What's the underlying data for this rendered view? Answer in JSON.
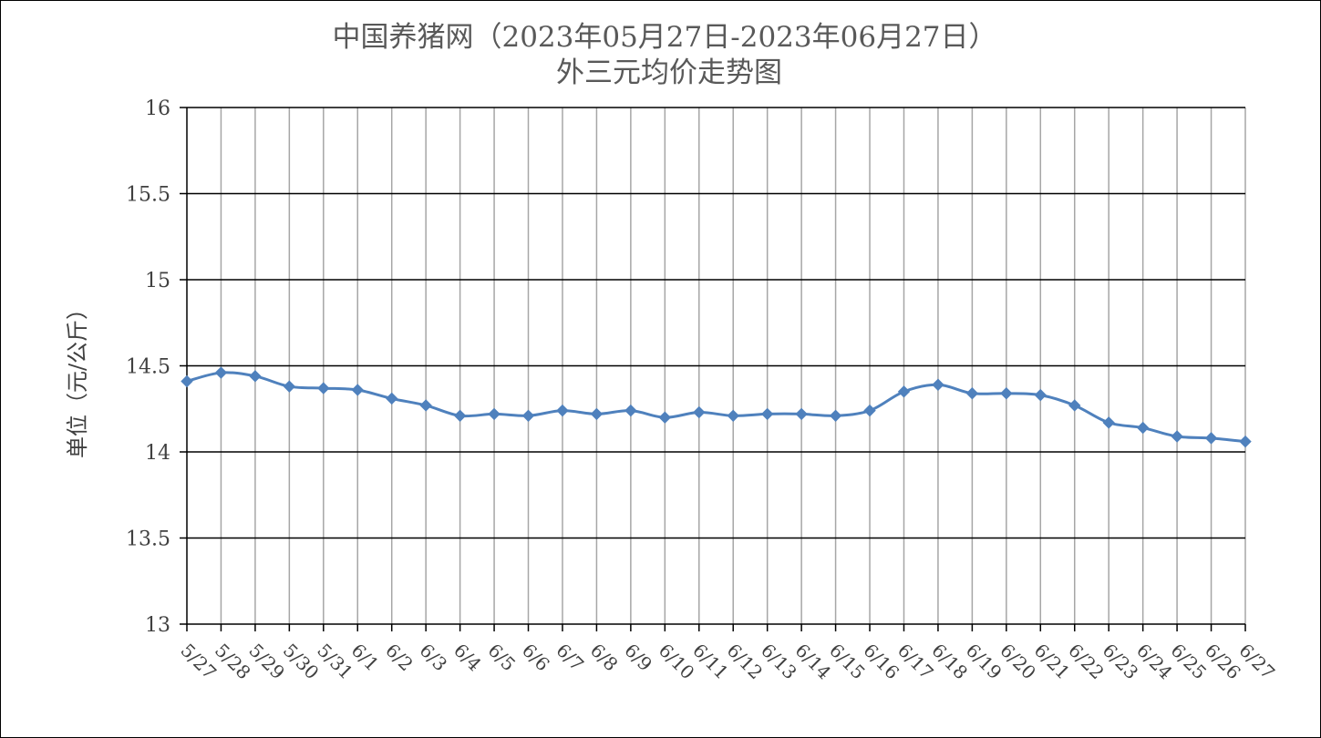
{
  "chart_data": {
    "type": "line",
    "title_line1": "中国养猪网（2023年05月27日-2023年06月27日）",
    "title_line2": "外三元均价走势图",
    "ylabel": "单位（元/公斤）",
    "xlabel": "",
    "ylim": [
      13,
      16
    ],
    "ytick_step": 0.5,
    "ytick_labels": [
      "13",
      "13.5",
      "14",
      "14.5",
      "15",
      "15.5",
      "16"
    ],
    "categories": [
      "5/27",
      "5/28",
      "5/29",
      "5/30",
      "5/31",
      "6/1",
      "6/2",
      "6/3",
      "6/4",
      "6/5",
      "6/6",
      "6/7",
      "6/8",
      "6/9",
      "6/10",
      "6/11",
      "6/12",
      "6/13",
      "6/14",
      "6/15",
      "6/16",
      "6/17",
      "6/18",
      "6/19",
      "6/20",
      "6/21",
      "6/22",
      "6/23",
      "6/24",
      "6/25",
      "6/26",
      "6/27"
    ],
    "series": [
      {
        "values": [
          14.41,
          14.46,
          14.44,
          14.38,
          14.37,
          14.36,
          14.31,
          14.27,
          14.21,
          14.22,
          14.21,
          14.24,
          14.22,
          14.24,
          14.2,
          14.23,
          14.21,
          14.22,
          14.22,
          14.21,
          14.24,
          14.35,
          14.39,
          14.34,
          14.34,
          14.33,
          14.27,
          14.17,
          14.14,
          14.09,
          14.08,
          14.06
        ],
        "color": "#4F81BD",
        "marker": "diamond"
      }
    ],
    "grid": {
      "horizontal": true,
      "vertical": true
    },
    "colors": {
      "hgrid": "#000000",
      "vgrid": "#A6A6A6",
      "axis": "#000000"
    }
  }
}
